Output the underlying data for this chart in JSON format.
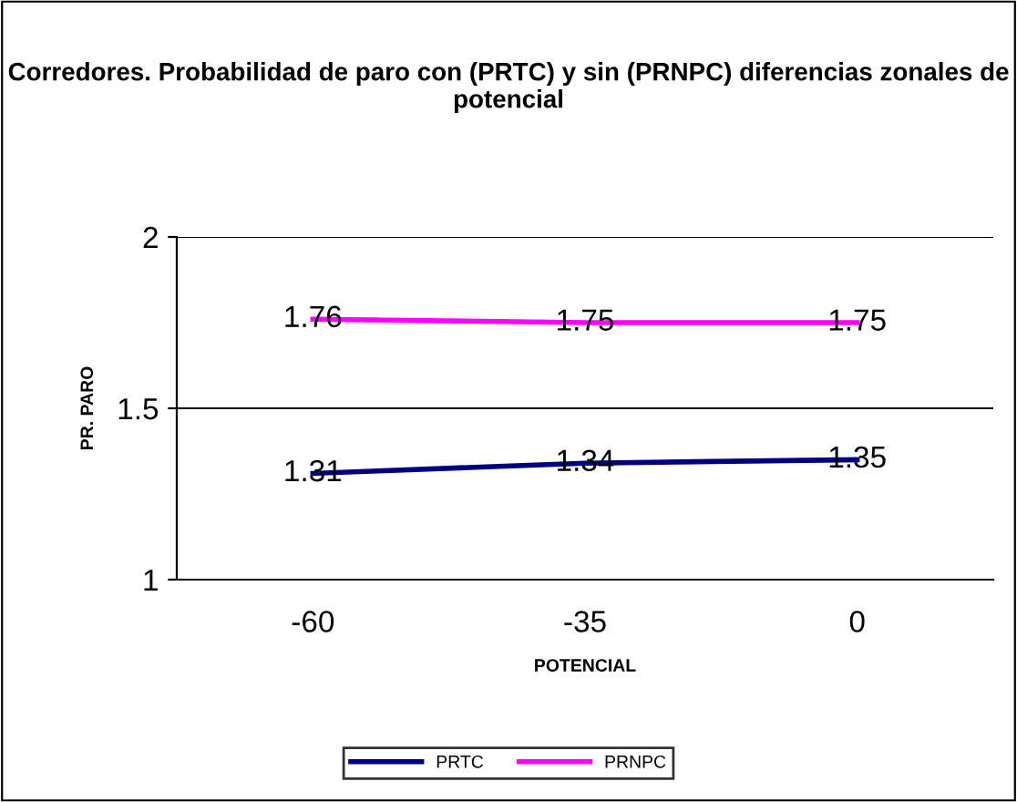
{
  "chart_data": {
    "type": "line",
    "title": "Corredores. Probabilidad de paro con (PRTC) y sin (PRNPC) diferencias zonales de potencial",
    "xlabel": "POTENCIAL",
    "ylabel": "PR. PARO",
    "categories": [
      "-60",
      "-35",
      "0"
    ],
    "series": [
      {
        "name": "PRTC",
        "color": "#000080",
        "values": [
          1.31,
          1.34,
          1.35
        ]
      },
      {
        "name": "PRNPC",
        "color": "#ff00ff",
        "values": [
          1.76,
          1.75,
          1.75
        ]
      }
    ],
    "ylim": [
      1,
      2
    ],
    "yticks": [
      1,
      1.5,
      2
    ],
    "grid": "y",
    "legend": "bottom",
    "data_labels": true,
    "marker": "none",
    "line_style": "solid"
  }
}
